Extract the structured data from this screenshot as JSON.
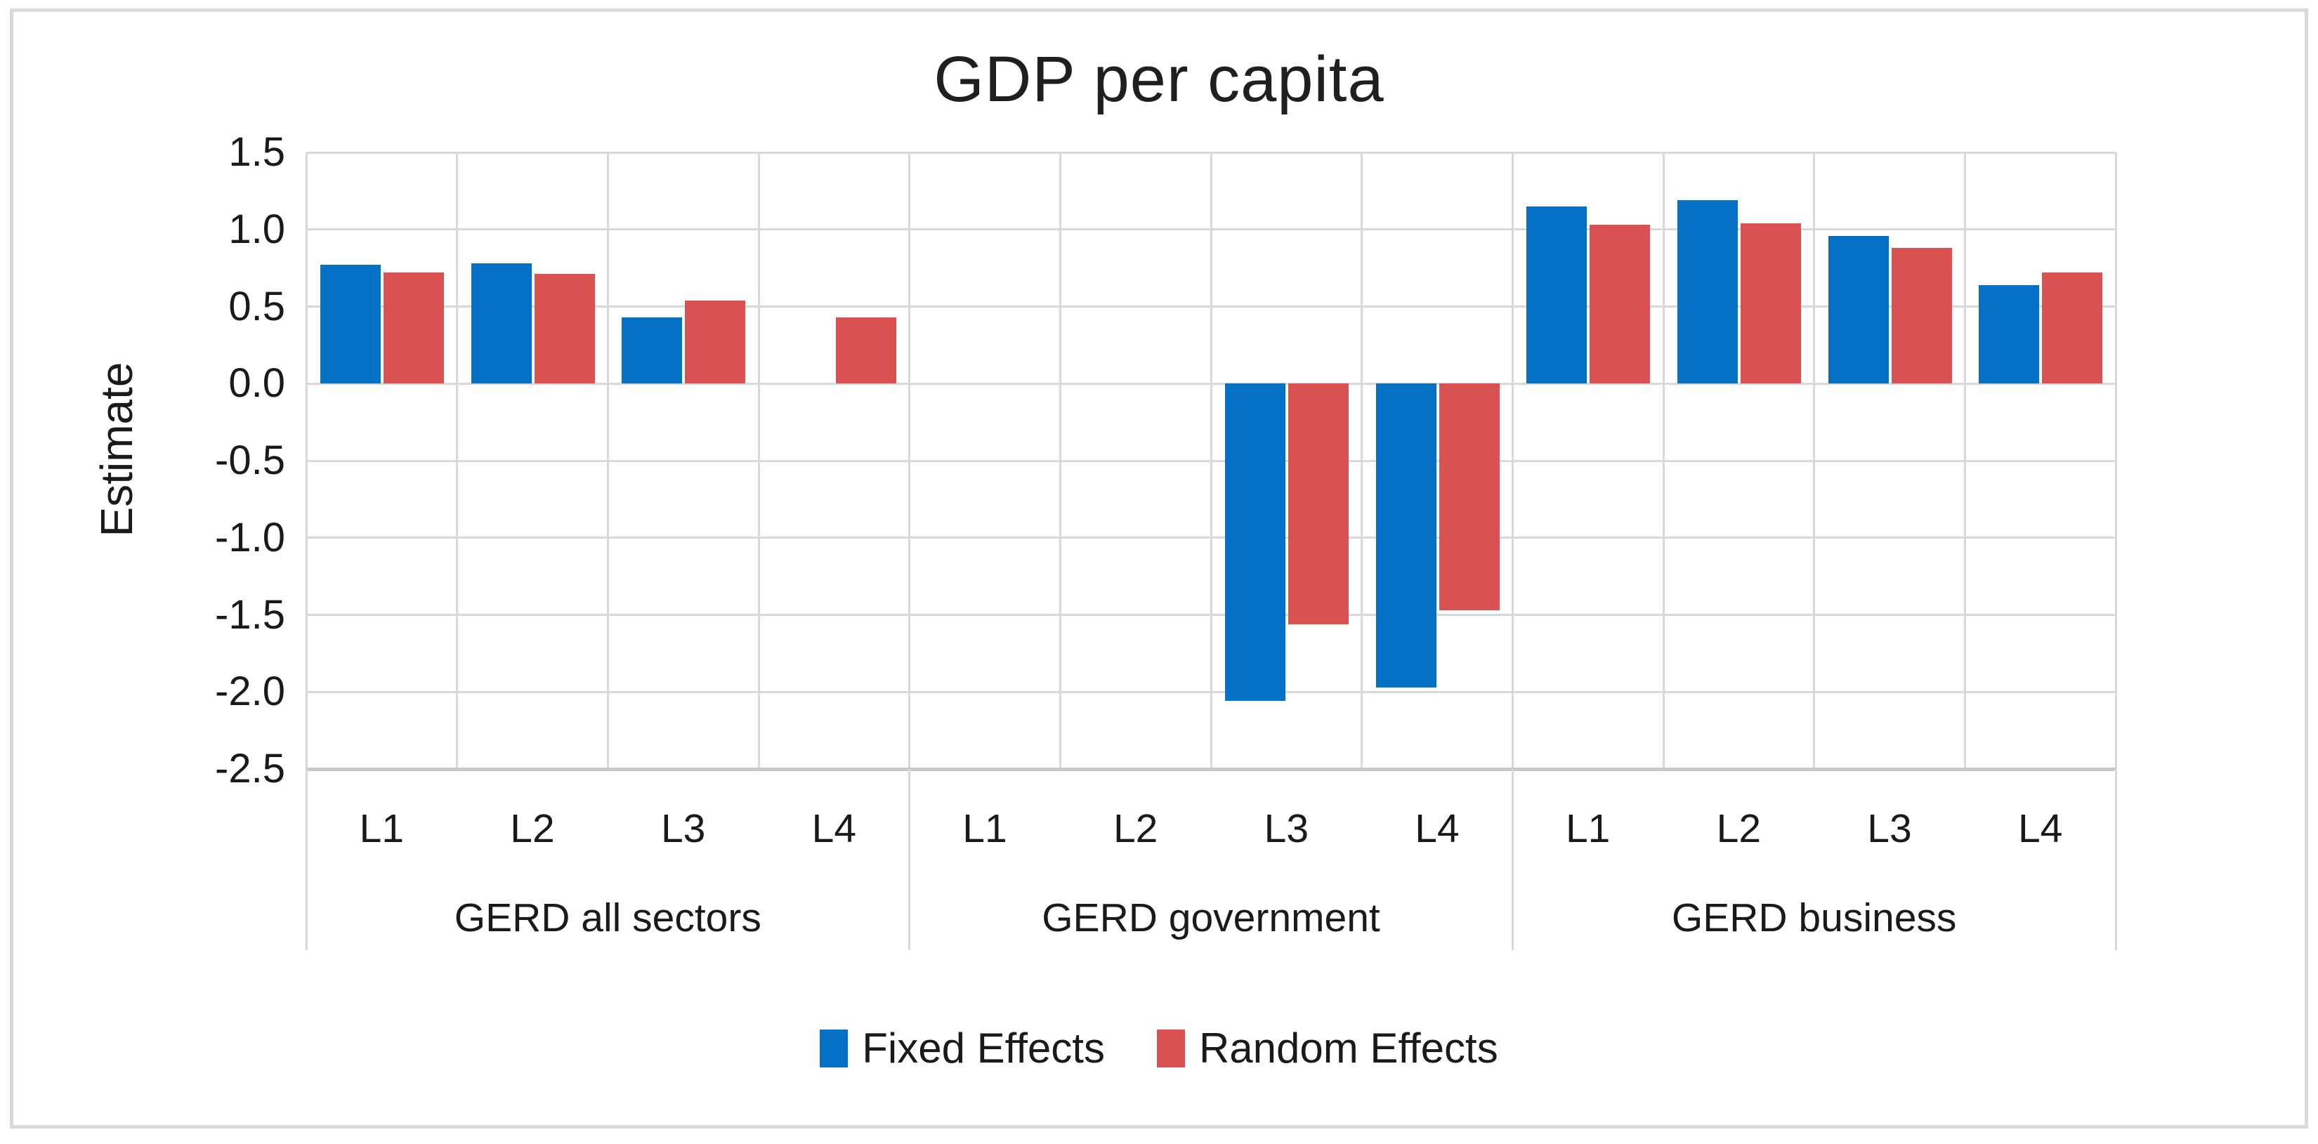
{
  "chart_data": {
    "type": "bar",
    "title": "GDP per capita",
    "ylabel": "Estimate",
    "ylim": [
      -2.5,
      1.5
    ],
    "ystep": 0.5,
    "yticks": [
      "1.5",
      "1.0",
      "0.5",
      "0.0",
      "-0.5",
      "-1.0",
      "-1.5",
      "-2.0",
      "-2.5"
    ],
    "grid": true,
    "legend_position": "bottom",
    "groups": [
      {
        "label": "GERD all sectors",
        "categories": [
          "L1",
          "L2",
          "L3",
          "L4"
        ]
      },
      {
        "label": "GERD government",
        "categories": [
          "L1",
          "L2",
          "L3",
          "L4"
        ]
      },
      {
        "label": "GERD business",
        "categories": [
          "L1",
          "L2",
          "L3",
          "L4"
        ]
      }
    ],
    "series": [
      {
        "name": "Fixed Effects",
        "color": "#0571C5",
        "values": [
          0.77,
          0.78,
          0.43,
          null,
          null,
          null,
          -2.06,
          -1.97,
          1.15,
          1.19,
          0.96,
          0.64
        ]
      },
      {
        "name": "Random Effects",
        "color": "#D95151",
        "values": [
          0.72,
          0.71,
          0.54,
          0.43,
          null,
          null,
          -1.56,
          -1.47,
          1.03,
          1.04,
          0.88,
          0.72
        ]
      }
    ],
    "colors": {
      "grid": "#D9D9D9",
      "axis": "#C9C9C9",
      "text": "#1A1A1A"
    }
  }
}
